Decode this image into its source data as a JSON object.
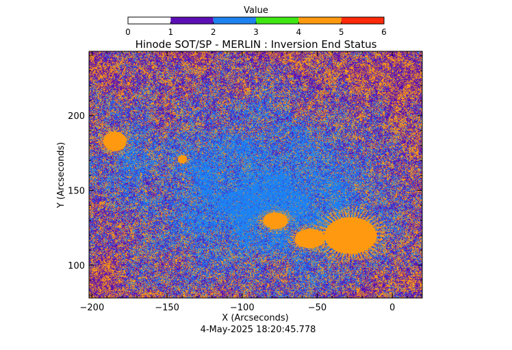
{
  "chart_data": {
    "type": "heatmap",
    "title": "Hinode SOT/SP - MERLIN : Inversion End Status",
    "xlabel": "X (Arcseconds)",
    "ylabel": "Y (Arcseconds)",
    "xlim": [
      -202,
      20
    ],
    "ylim": [
      78,
      243
    ],
    "xticks": [
      -200,
      -150,
      -100,
      -50,
      0
    ],
    "yticks": [
      100,
      150,
      200
    ],
    "timestamp": "4-May-2025 18:20:45.778",
    "colorbar": {
      "title": "Value",
      "range": [
        0,
        6
      ],
      "ticks": [
        0,
        1,
        2,
        3,
        4,
        5,
        6
      ],
      "bins": [
        {
          "from": 0,
          "to": 1,
          "color": "#ffffff"
        },
        {
          "from": 1,
          "to": 2,
          "color": "#5b0fb5"
        },
        {
          "from": 2,
          "to": 3,
          "color": "#1e82f0"
        },
        {
          "from": 3,
          "to": 4,
          "color": "#3ee614"
        },
        {
          "from": 4,
          "to": 5,
          "color": "#ff9a10"
        },
        {
          "from": 5,
          "to": 6,
          "color": "#ff2a0a"
        }
      ]
    },
    "dominant_values": [
      1,
      2,
      4
    ],
    "regions_value_4": [
      {
        "x": -185,
        "y": 183
      },
      {
        "x": -140,
        "y": 171
      },
      {
        "x": -78,
        "y": 130
      },
      {
        "x": -55,
        "y": 118
      },
      {
        "x": -28,
        "y": 120
      }
    ]
  }
}
